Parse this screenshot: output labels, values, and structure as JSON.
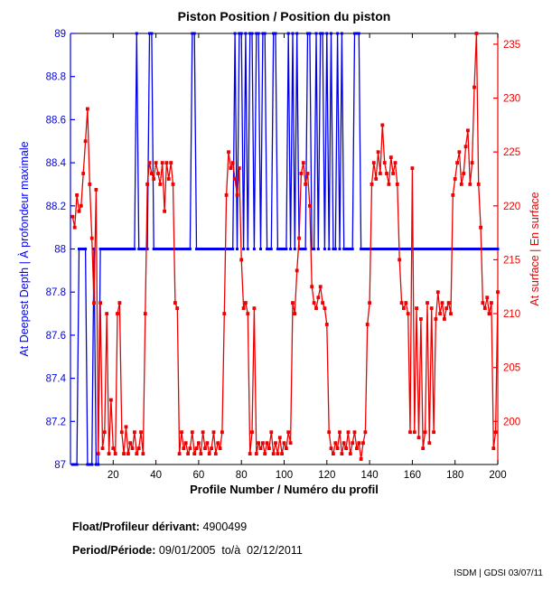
{
  "title": "Piston Position / Position du piston",
  "footer": {
    "float_label": "Float/Profileur dérivant:",
    "float_value": "4900499",
    "period_label": "Period/Période:",
    "period_value": "09/01/2005  to/à  02/12/2011",
    "credit": "ISDM | GDSI 03/07/11"
  },
  "chart_data": {
    "type": "line",
    "title": "Piston Position / Position du piston",
    "xlabel": "Profile Number / Numéro du profil",
    "xlim": [
      0,
      200
    ],
    "x_ticks": [
      20,
      40,
      60,
      80,
      100,
      120,
      140,
      160,
      180,
      200
    ],
    "grid": false,
    "left_axis": {
      "label": "At Deepest Depth | À profondeur maximale",
      "color": "#0000ee",
      "ylim": [
        87,
        89
      ],
      "ticks": [
        87,
        87.2,
        87.4,
        87.6,
        87.8,
        88,
        88.2,
        88.4,
        88.6,
        88.8,
        89
      ]
    },
    "right_axis": {
      "label": "At surface | En surface",
      "color": "#ee0000",
      "ylim": [
        196,
        236
      ],
      "ticks": [
        200,
        205,
        210,
        215,
        220,
        225,
        230,
        235
      ]
    },
    "series": [
      {
        "name": "At Deepest Depth | À profondeur maximale",
        "axis": "left",
        "color": "#0000ee",
        "encoding": "base-with-excursions",
        "x_start": 1,
        "n": 200,
        "base_value": 88,
        "dips_to_87_at_profiles": [
          1,
          2,
          3,
          8,
          9,
          10,
          12,
          13
        ],
        "spikes_to_89_at_profiles": [
          31,
          37,
          38,
          57,
          58,
          77,
          79,
          80,
          82,
          84,
          85,
          87,
          88,
          90,
          91,
          95,
          96,
          102,
          104,
          106,
          111,
          112,
          115,
          117,
          118,
          120,
          122,
          125,
          127,
          133,
          134,
          135
        ]
      },
      {
        "name": "At surface | En surface",
        "axis": "right",
        "color": "#ee0000",
        "encoding": "values",
        "x_start": 1,
        "values": [
          219,
          218,
          221,
          219.5,
          220,
          223,
          226,
          229,
          222,
          217,
          211,
          221.5,
          197,
          211,
          197.5,
          199,
          210,
          197,
          202,
          197.5,
          197,
          210,
          211,
          199,
          197,
          199.5,
          197,
          198,
          197.5,
          199,
          197,
          197.5,
          199,
          197,
          210,
          222,
          224,
          223,
          222.5,
          224,
          223,
          222,
          224,
          219.5,
          224,
          222.5,
          224,
          222,
          211,
          210.5,
          197,
          199,
          197.5,
          198,
          197,
          197.5,
          199,
          197,
          197.5,
          198,
          197,
          199,
          197.5,
          198,
          197,
          197.5,
          199,
          197,
          198,
          197.5,
          199,
          210,
          221,
          225,
          223.5,
          224,
          222.5,
          221,
          223.5,
          215,
          210.5,
          211,
          210,
          197,
          199,
          210.5,
          197,
          198,
          197.5,
          198,
          197,
          198,
          197.5,
          199,
          197,
          198,
          197,
          198.5,
          197,
          198,
          197.5,
          199,
          198,
          211,
          210,
          214,
          217,
          223,
          224,
          222,
          223,
          220,
          212.5,
          211,
          210.5,
          211.5,
          212.5,
          211,
          210.5,
          209,
          199,
          197.5,
          197,
          198,
          197.5,
          199,
          197,
          198,
          197.5,
          199,
          197,
          198,
          199,
          197.5,
          198,
          196.5,
          198,
          199,
          209,
          211,
          222,
          224,
          222.5,
          225,
          223,
          227.5,
          224,
          223,
          222,
          224.5,
          223,
          224,
          222,
          215,
          211,
          210.5,
          211,
          210,
          199,
          223.5,
          199,
          210.5,
          198.5,
          209.5,
          197.5,
          199,
          211,
          198,
          210.5,
          199,
          209.5,
          212,
          210,
          211,
          209.5,
          210.5,
          211,
          210,
          221,
          222.5,
          224,
          225,
          222,
          223,
          225.5,
          227,
          222,
          224,
          231,
          236,
          222,
          218,
          211,
          210.5,
          211.5,
          210,
          211,
          197.5,
          199,
          212
        ]
      }
    ]
  }
}
